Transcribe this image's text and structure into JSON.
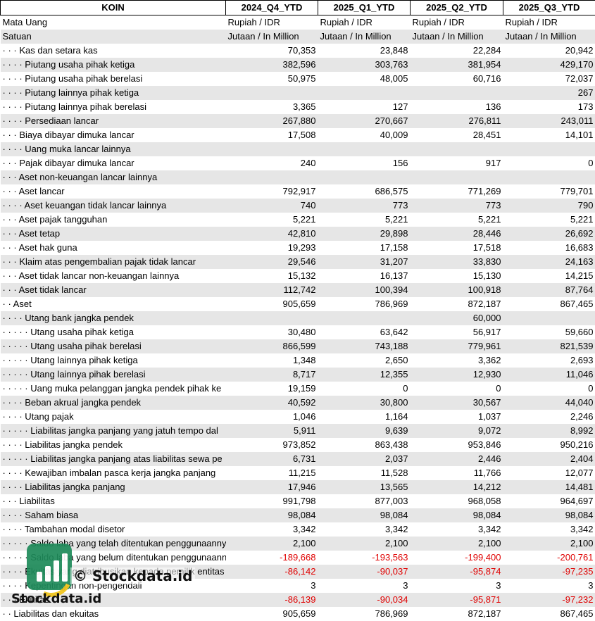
{
  "header": [
    "KOIN",
    "2024_Q4_YTD",
    "2025_Q1_YTD",
    "2025_Q2_YTD",
    "2025_Q3_YTD"
  ],
  "rows": [
    {
      "label": "Mata Uang",
      "values": [
        "Rupiah / IDR",
        "Rupiah / IDR",
        "Rupiah / IDR",
        "Rupiah / IDR"
      ],
      "text": true
    },
    {
      "label": "Satuan",
      "values": [
        "Jutaan / In Million",
        "Jutaan / In Million",
        "Jutaan / In Million",
        "Jutaan / In Million"
      ],
      "text": true
    },
    {
      "label": "· · · Kas dan setara kas",
      "values": [
        "70,353",
        "23,848",
        "22,284",
        "20,942"
      ]
    },
    {
      "label": "· · · · Piutang usaha pihak ketiga",
      "values": [
        "382,596",
        "303,763",
        "381,954",
        "429,170"
      ]
    },
    {
      "label": "· · · · Piutang usaha pihak berelasi",
      "values": [
        "50,975",
        "48,005",
        "60,716",
        "72,037"
      ]
    },
    {
      "label": "· · · · Piutang lainnya pihak ketiga",
      "values": [
        "",
        "",
        "",
        "267"
      ]
    },
    {
      "label": "· · · · Piutang lainnya pihak berelasi",
      "values": [
        "3,365",
        "127",
        "136",
        "173"
      ]
    },
    {
      "label": "· · · · Persediaan lancar",
      "values": [
        "267,880",
        "270,667",
        "276,811",
        "243,011"
      ]
    },
    {
      "label": "· · · Biaya dibayar dimuka lancar",
      "values": [
        "17,508",
        "40,009",
        "28,451",
        "14,101"
      ]
    },
    {
      "label": "· · · · Uang muka lancar lainnya",
      "values": [
        "",
        "",
        "",
        ""
      ]
    },
    {
      "label": "· · · Pajak dibayar dimuka lancar",
      "values": [
        "240",
        "156",
        "917",
        "0"
      ]
    },
    {
      "label": "· · · Aset non-keuangan lancar lainnya",
      "values": [
        "",
        "",
        "",
        ""
      ]
    },
    {
      "label": "· · · Aset lancar",
      "values": [
        "792,917",
        "686,575",
        "771,269",
        "779,701"
      ]
    },
    {
      "label": "· · · · Aset keuangan tidak lancar lainnya",
      "values": [
        "740",
        "773",
        "773",
        "790"
      ]
    },
    {
      "label": "· · · Aset pajak tangguhan",
      "values": [
        "5,221",
        "5,221",
        "5,221",
        "5,221"
      ]
    },
    {
      "label": "· · · Aset tetap",
      "values": [
        "42,810",
        "29,898",
        "28,446",
        "26,692"
      ]
    },
    {
      "label": "· · · Aset hak guna",
      "values": [
        "19,293",
        "17,158",
        "17,518",
        "16,683"
      ]
    },
    {
      "label": "· · · Klaim atas pengembalian pajak tidak lancar",
      "values": [
        "29,546",
        "31,207",
        "33,830",
        "24,163"
      ]
    },
    {
      "label": "· · · Aset tidak lancar non-keuangan lainnya",
      "values": [
        "15,132",
        "16,137",
        "15,130",
        "14,215"
      ]
    },
    {
      "label": "· · · Aset tidak lancar",
      "values": [
        "112,742",
        "100,394",
        "100,918",
        "87,764"
      ]
    },
    {
      "label": "· · Aset",
      "values": [
        "905,659",
        "786,969",
        "872,187",
        "867,465"
      ]
    },
    {
      "label": "· · · · Utang bank jangka pendek",
      "values": [
        "",
        "",
        "60,000",
        ""
      ]
    },
    {
      "label": "· · · · · Utang usaha pihak ketiga",
      "values": [
        "30,480",
        "63,642",
        "56,917",
        "59,660"
      ]
    },
    {
      "label": "· · · · · Utang usaha pihak berelasi",
      "values": [
        "866,599",
        "743,188",
        "779,961",
        "821,539"
      ]
    },
    {
      "label": "· · · · · Utang lainnya pihak ketiga",
      "values": [
        "1,348",
        "2,650",
        "3,362",
        "2,693"
      ]
    },
    {
      "label": "· · · · · Utang lainnya pihak berelasi",
      "values": [
        "8,717",
        "12,355",
        "12,930",
        "11,046"
      ]
    },
    {
      "label": "· · · · · Uang muka pelanggan jangka pendek pihak ke",
      "values": [
        "19,159",
        "0",
        "0",
        "0"
      ]
    },
    {
      "label": "· · · · Beban akrual jangka pendek",
      "values": [
        "40,592",
        "30,800",
        "30,567",
        "44,040"
      ]
    },
    {
      "label": "· · · · Utang pajak",
      "values": [
        "1,046",
        "1,164",
        "1,037",
        "2,246"
      ]
    },
    {
      "label": "· · · · · Liabilitas jangka panjang yang jatuh tempo dal",
      "values": [
        "5,911",
        "9,639",
        "9,072",
        "8,992"
      ]
    },
    {
      "label": "· · · · Liabilitas jangka pendek",
      "values": [
        "973,852",
        "863,438",
        "953,846",
        "950,216"
      ]
    },
    {
      "label": "· · · · · Liabilitas jangka panjang atas liabilitas sewa pe",
      "values": [
        "6,731",
        "2,037",
        "2,446",
        "2,404"
      ]
    },
    {
      "label": "· · · · Kewajiban imbalan pasca kerja jangka panjang",
      "values": [
        "11,215",
        "11,528",
        "11,766",
        "12,077"
      ]
    },
    {
      "label": "· · · · Liabilitas jangka panjang",
      "values": [
        "17,946",
        "13,565",
        "14,212",
        "14,481"
      ]
    },
    {
      "label": "· · · Liabilitas",
      "values": [
        "991,798",
        "877,003",
        "968,058",
        "964,697"
      ]
    },
    {
      "label": "· · · · Saham biasa",
      "values": [
        "98,084",
        "98,084",
        "98,084",
        "98,084"
      ]
    },
    {
      "label": "· · · · Tambahan modal disetor",
      "values": [
        "3,342",
        "3,342",
        "3,342",
        "3,342"
      ]
    },
    {
      "label": "· · · · · Saldo laba yang telah ditentukan penggunaannya",
      "values": [
        "2,100",
        "2,100",
        "2,100",
        "2,100"
      ]
    },
    {
      "label": "· · · · · Saldo laba yang belum ditentukan penggunaannya",
      "values": [
        "-189,668",
        "-193,563",
        "-199,400",
        "-200,761"
      ]
    },
    {
      "label": "· · · · Ekuitas yang diatribusikan kepada pemilik entitas",
      "values": [
        "-86,142",
        "-90,037",
        "-95,874",
        "-97,235"
      ]
    },
    {
      "label": "· · · · Kepentingan non-pengendali",
      "values": [
        "3",
        "3",
        "3",
        "3"
      ]
    },
    {
      "label": "· · · Ekuitas",
      "values": [
        "-86,139",
        "-90,034",
        "-95,871",
        "-97,232"
      ]
    },
    {
      "label": "· · Liabilitas dan ekuitas",
      "values": [
        "905,659",
        "786,969",
        "872,187",
        "867,465"
      ]
    }
  ],
  "watermark": {
    "copyright_text": "© Stockdata.id",
    "brand_text": "Stockdata.id"
  },
  "colors": {
    "negative": "#e00000",
    "stripe": "#e6e6e6",
    "logo_green": "#1e8a5a"
  }
}
